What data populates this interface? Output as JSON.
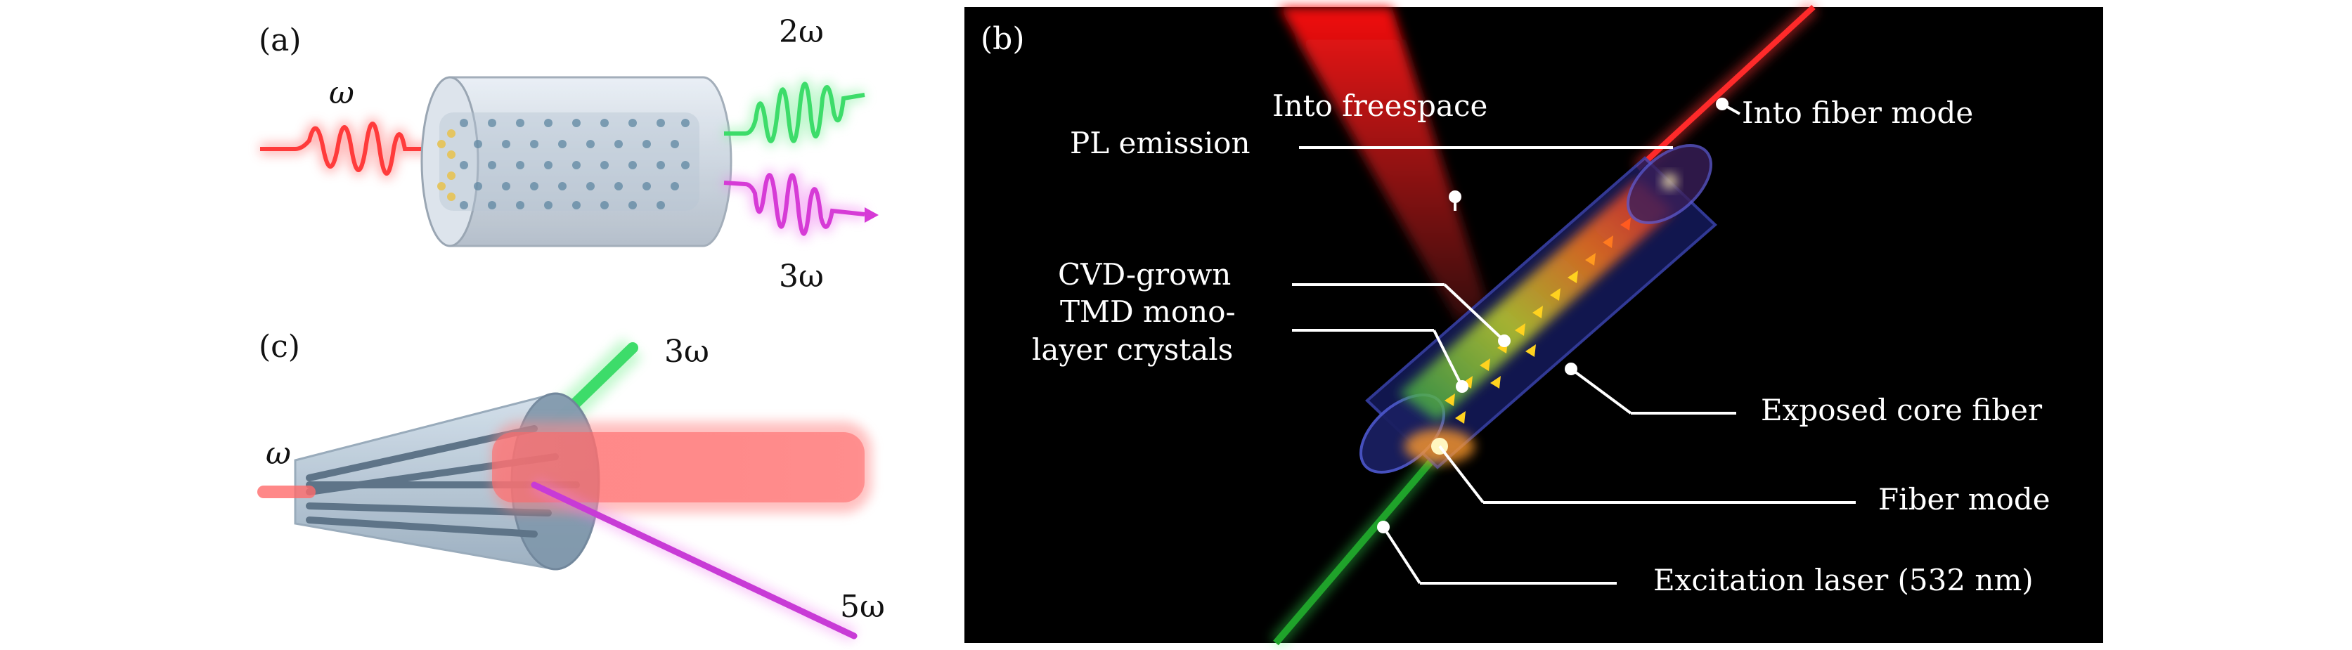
{
  "panel_a": {
    "label": "(a)",
    "input_freq": "ω",
    "output_upper": "2ω",
    "output_lower": "3ω"
  },
  "panel_c": {
    "label": "(c)",
    "input_freq": "ω",
    "output_upper": "3ω",
    "output_lower": "5ω"
  },
  "panel_b": {
    "label": "(b)",
    "annotations": {
      "into_freespace": "Into freespace",
      "pl_emission": "PL emission",
      "into_fiber_mode": "Into fiber mode",
      "cvd_line1": "CVD-grown",
      "cvd_line2": "TMD mono-",
      "cvd_line3": "layer crystals",
      "exposed_core_fiber": "Exposed core fiber",
      "fiber_mode": "Fiber mode",
      "excitation_laser": "Excitation laser (532 nm)"
    }
  },
  "colors": {
    "fundamental_red": "#ff3b3b",
    "second_harmonic_green": "#3ddc6a",
    "third_harmonic_magenta": "#d63bd6",
    "excitation_green": "#1fa32a",
    "panel_b_background": "#000000",
    "fiber_blue": "#2a2f8a"
  }
}
